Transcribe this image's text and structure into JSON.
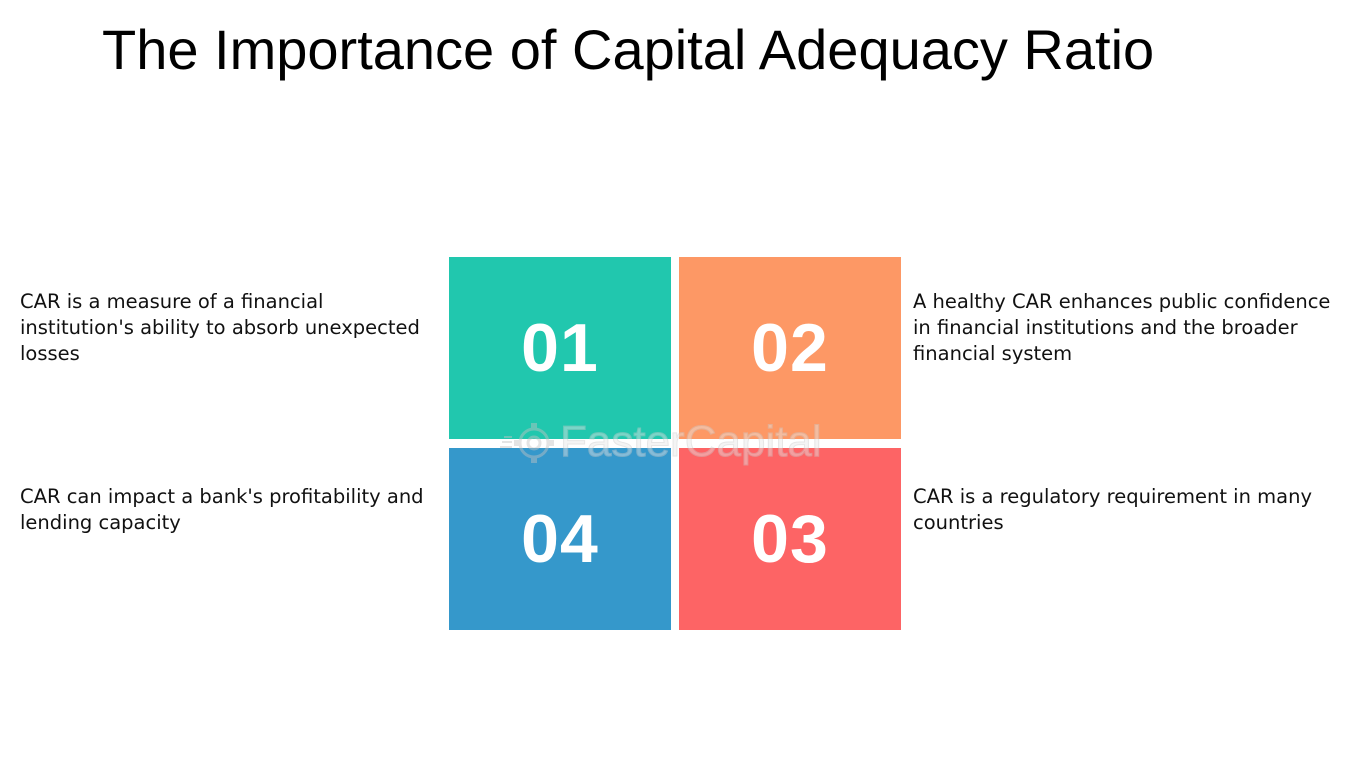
{
  "title": "The Importance of Capital Adequacy Ratio",
  "items": [
    {
      "number": "01",
      "text": "CAR is a measure of a financial institution's ability to absorb unexpected losses",
      "color": "#21C7AE"
    },
    {
      "number": "02",
      "text": "A healthy CAR enhances public confidence in financial institutions and the broader financial system",
      "color": "#FD9865"
    },
    {
      "number": "03",
      "text": "CAR is a regulatory requirement in many countries",
      "color": "#FD6465"
    },
    {
      "number": "04",
      "text": "CAR can impact a bank's profitability and lending capacity",
      "color": "#3598CB"
    }
  ],
  "watermark": {
    "text": "FasterCapital",
    "icon": "gear-logo-icon"
  }
}
